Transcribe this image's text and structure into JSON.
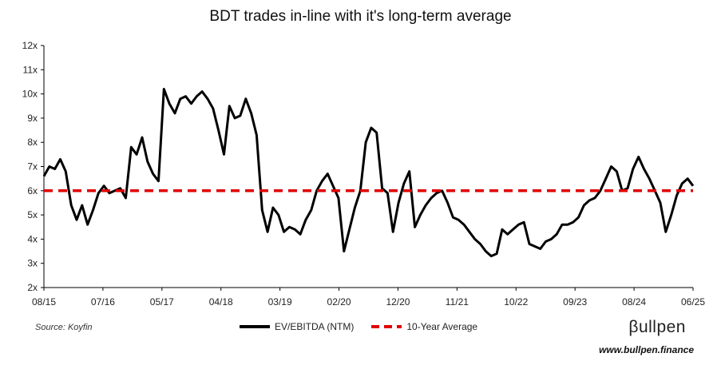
{
  "chart_data": {
    "type": "line",
    "title": "BDT trades in-line with it's long-term average",
    "y_tick_labels": [
      "2x",
      "3x",
      "4x",
      "5x",
      "6x",
      "7x",
      "8x",
      "9x",
      "10x",
      "11x",
      "12x"
    ],
    "ylim": [
      2,
      12
    ],
    "x_tick_labels": [
      "08/15",
      "07/16",
      "05/17",
      "04/18",
      "03/19",
      "02/20",
      "12/20",
      "11/21",
      "10/22",
      "09/23",
      "08/24",
      "06/25"
    ],
    "xlim": [
      "2015-08",
      "2025-07"
    ],
    "series": [
      {
        "name": "EV/EBITDA (NTM)",
        "color": "#000000",
        "points": [
          [
            "2015-08",
            6.6
          ],
          [
            "2015-09",
            7.0
          ],
          [
            "2015-10",
            6.9
          ],
          [
            "2015-11",
            7.3
          ],
          [
            "2015-12",
            6.8
          ],
          [
            "2016-01",
            5.4
          ],
          [
            "2016-02",
            4.8
          ],
          [
            "2016-03",
            5.4
          ],
          [
            "2016-04",
            4.6
          ],
          [
            "2016-05",
            5.2
          ],
          [
            "2016-06",
            5.9
          ],
          [
            "2016-07",
            6.2
          ],
          [
            "2016-08",
            5.9
          ],
          [
            "2016-09",
            6.0
          ],
          [
            "2016-10",
            6.1
          ],
          [
            "2016-11",
            5.7
          ],
          [
            "2016-12",
            7.8
          ],
          [
            "2017-01",
            7.5
          ],
          [
            "2017-02",
            8.2
          ],
          [
            "2017-03",
            7.2
          ],
          [
            "2017-04",
            6.7
          ],
          [
            "2017-05",
            6.4
          ],
          [
            "2017-06",
            10.2
          ],
          [
            "2017-07",
            9.6
          ],
          [
            "2017-08",
            9.2
          ],
          [
            "2017-09",
            9.8
          ],
          [
            "2017-10",
            9.9
          ],
          [
            "2017-11",
            9.6
          ],
          [
            "2017-12",
            9.9
          ],
          [
            "2018-01",
            10.1
          ],
          [
            "2018-02",
            9.8
          ],
          [
            "2018-03",
            9.4
          ],
          [
            "2018-04",
            8.5
          ],
          [
            "2018-05",
            7.5
          ],
          [
            "2018-06",
            9.5
          ],
          [
            "2018-07",
            9.0
          ],
          [
            "2018-08",
            9.1
          ],
          [
            "2018-09",
            9.8
          ],
          [
            "2018-10",
            9.2
          ],
          [
            "2018-11",
            8.3
          ],
          [
            "2018-12",
            5.2
          ],
          [
            "2019-01",
            4.3
          ],
          [
            "2019-02",
            5.3
          ],
          [
            "2019-03",
            5.0
          ],
          [
            "2019-04",
            4.3
          ],
          [
            "2019-05",
            4.5
          ],
          [
            "2019-06",
            4.4
          ],
          [
            "2019-07",
            4.2
          ],
          [
            "2019-08",
            4.8
          ],
          [
            "2019-09",
            5.2
          ],
          [
            "2019-10",
            6.0
          ],
          [
            "2019-11",
            6.4
          ],
          [
            "2019-12",
            6.7
          ],
          [
            "2020-01",
            6.2
          ],
          [
            "2020-02",
            5.7
          ],
          [
            "2020-03",
            3.5
          ],
          [
            "2020-04",
            4.4
          ],
          [
            "2020-05",
            5.3
          ],
          [
            "2020-06",
            6.0
          ],
          [
            "2020-07",
            8.0
          ],
          [
            "2020-08",
            8.6
          ],
          [
            "2020-09",
            8.4
          ],
          [
            "2020-10",
            6.1
          ],
          [
            "2020-11",
            5.9
          ],
          [
            "2020-12",
            4.3
          ],
          [
            "2021-01",
            5.5
          ],
          [
            "2021-02",
            6.3
          ],
          [
            "2021-03",
            6.8
          ],
          [
            "2021-04",
            4.5
          ],
          [
            "2021-05",
            5.0
          ],
          [
            "2021-06",
            5.4
          ],
          [
            "2021-07",
            5.7
          ],
          [
            "2021-08",
            5.9
          ],
          [
            "2021-09",
            6.0
          ],
          [
            "2021-10",
            5.5
          ],
          [
            "2021-11",
            4.9
          ],
          [
            "2021-12",
            4.8
          ],
          [
            "2022-01",
            4.6
          ],
          [
            "2022-02",
            4.3
          ],
          [
            "2022-03",
            4.0
          ],
          [
            "2022-04",
            3.8
          ],
          [
            "2022-05",
            3.5
          ],
          [
            "2022-06",
            3.3
          ],
          [
            "2022-07",
            3.4
          ],
          [
            "2022-08",
            4.4
          ],
          [
            "2022-09",
            4.2
          ],
          [
            "2022-10",
            4.4
          ],
          [
            "2022-11",
            4.6
          ],
          [
            "2022-12",
            4.7
          ],
          [
            "2023-01",
            3.8
          ],
          [
            "2023-02",
            3.7
          ],
          [
            "2023-03",
            3.6
          ],
          [
            "2023-04",
            3.9
          ],
          [
            "2023-05",
            4.0
          ],
          [
            "2023-06",
            4.2
          ],
          [
            "2023-07",
            4.6
          ],
          [
            "2023-08",
            4.6
          ],
          [
            "2023-09",
            4.7
          ],
          [
            "2023-10",
            4.9
          ],
          [
            "2023-11",
            5.4
          ],
          [
            "2023-12",
            5.6
          ],
          [
            "2024-01",
            5.7
          ],
          [
            "2024-02",
            6.0
          ],
          [
            "2024-03",
            6.5
          ],
          [
            "2024-04",
            7.0
          ],
          [
            "2024-05",
            6.8
          ],
          [
            "2024-06",
            6.0
          ],
          [
            "2024-07",
            6.1
          ],
          [
            "2024-08",
            6.9
          ],
          [
            "2024-09",
            7.4
          ],
          [
            "2024-10",
            6.9
          ],
          [
            "2024-11",
            6.5
          ],
          [
            "2024-12",
            6.0
          ],
          [
            "2025-01",
            5.5
          ],
          [
            "2025-02",
            4.3
          ],
          [
            "2025-03",
            5.0
          ],
          [
            "2025-04",
            5.8
          ],
          [
            "2025-05",
            6.3
          ],
          [
            "2025-06",
            6.5
          ],
          [
            "2025-07",
            6.2
          ]
        ]
      },
      {
        "name": "10-Year Average",
        "color": "#e00000",
        "dashed": true,
        "points": [
          [
            "2015-08",
            6.0
          ],
          [
            "2025-07",
            6.0
          ]
        ]
      }
    ],
    "grid": false,
    "legend_position": "bottom"
  },
  "footer": {
    "source": "Source: Koyfin",
    "brand": "βullpen",
    "url": "www.bullpen.finance"
  }
}
